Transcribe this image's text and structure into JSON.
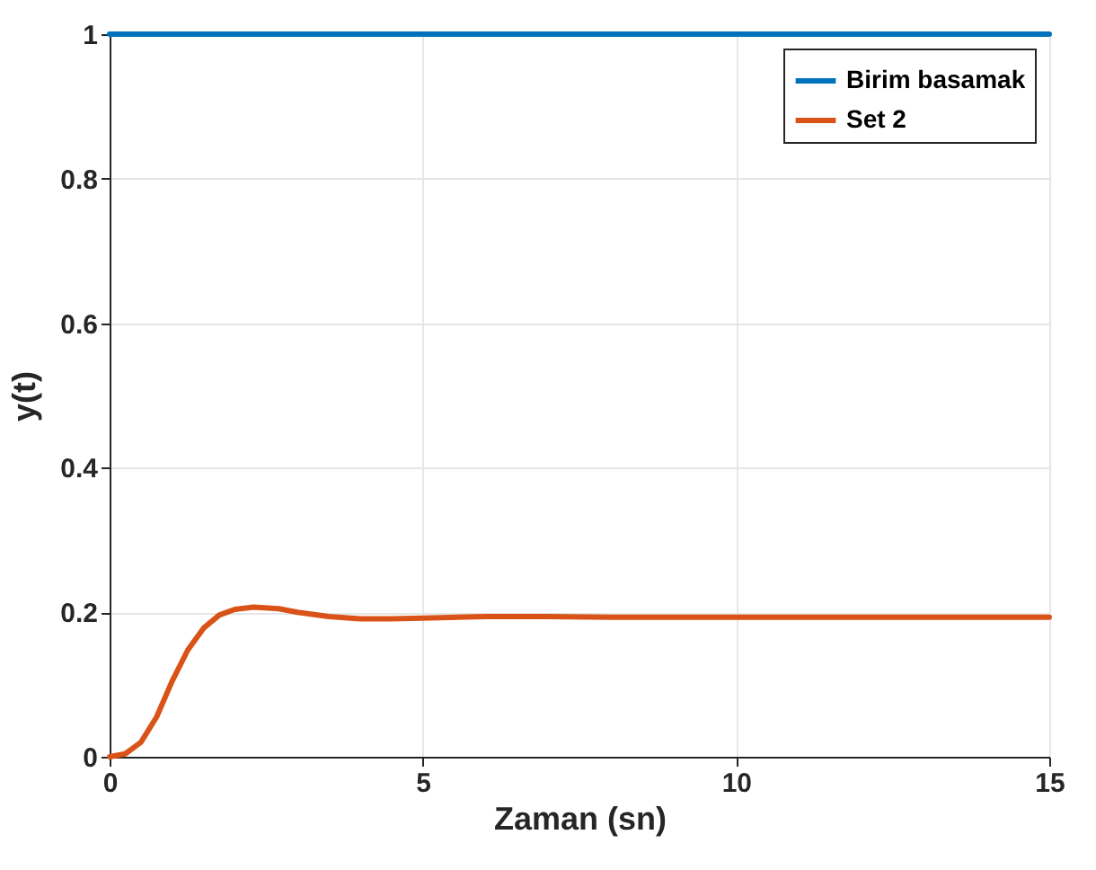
{
  "chart_data": {
    "type": "line",
    "xlabel": "Zaman (sn)",
    "ylabel": "y(t)",
    "xlim": [
      0,
      15
    ],
    "ylim": [
      0,
      1
    ],
    "xticks": [
      0,
      5,
      10,
      15
    ],
    "yticks": [
      0,
      0.2,
      0.4,
      0.6,
      0.8,
      1
    ],
    "grid": true,
    "legend": "top right",
    "line_style": "solid",
    "series": [
      {
        "name": "Birim basamak",
        "color": "#0072bd",
        "x": [
          0,
          15
        ],
        "values": [
          1,
          1
        ]
      },
      {
        "name": "Set 2",
        "color": "#d95319",
        "x": [
          0,
          0.25,
          0.5,
          0.75,
          1.0,
          1.25,
          1.5,
          1.75,
          2.0,
          2.3,
          2.7,
          3.0,
          3.5,
          4.0,
          4.5,
          5,
          6,
          7,
          8,
          10,
          15
        ],
        "values": [
          0,
          0.004,
          0.02,
          0.055,
          0.105,
          0.148,
          0.178,
          0.196,
          0.204,
          0.207,
          0.205,
          0.2,
          0.194,
          0.191,
          0.191,
          0.192,
          0.194,
          0.194,
          0.193,
          0.193,
          0.193
        ]
      }
    ]
  }
}
